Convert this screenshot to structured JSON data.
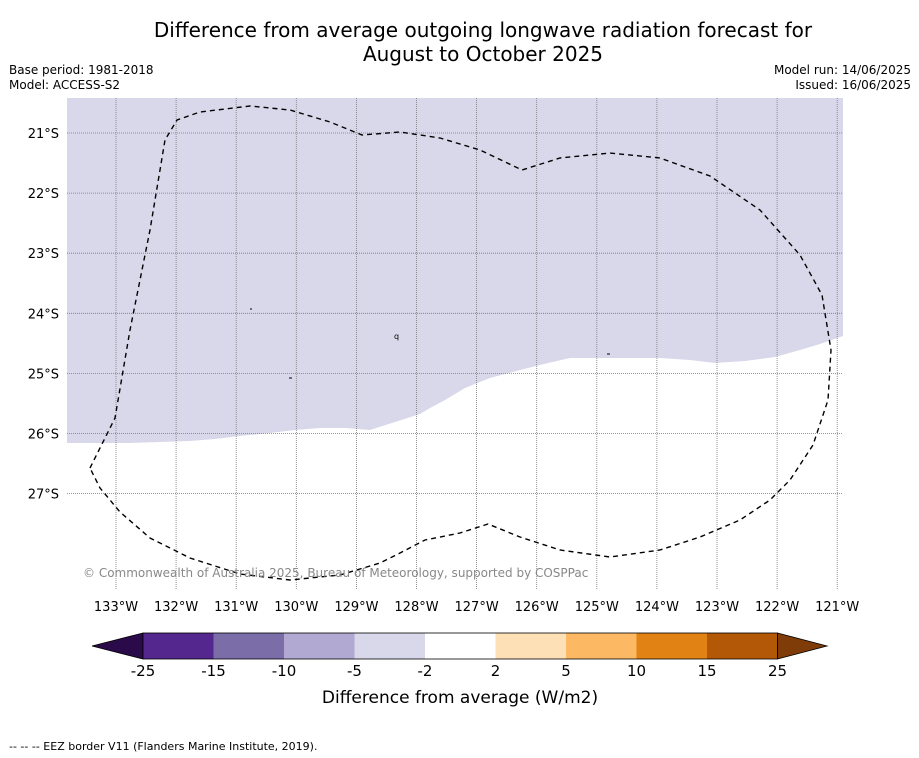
{
  "title": "Difference from average outgoing longwave radiation forecast for August to October 2025",
  "title_lines": [
    "Difference from average outgoing longwave radiation forecast for",
    "August to October 2025"
  ],
  "meta_left": [
    "Base period: 1981-2018",
    "Model: ACCESS-S2"
  ],
  "meta_right": [
    "Model run: 14/06/2025",
    "Issued: 16/06/2025"
  ],
  "lat_labels": [
    "21°S",
    "22°S",
    "23°S",
    "24°S",
    "25°S",
    "26°S",
    "27°S"
  ],
  "lon_labels": [
    "133°W",
    "132°W",
    "131°W",
    "130°W",
    "129°W",
    "128°W",
    "127°W",
    "126°W",
    "125°W",
    "124°W",
    "123°W",
    "122°W",
    "121°W"
  ],
  "copyright": "© Commonwealth of Australia 2025, Bureau of Meteorology, supported by COSPPac",
  "colorbar": {
    "ticks": [
      "-25",
      "-15",
      "-10",
      "-5",
      "-2",
      "2",
      "5",
      "10",
      "15",
      "25"
    ],
    "colors": [
      "#2b0a4a",
      "#54278f",
      "#7b6ea8",
      "#b1a9d1",
      "#d9d8ea",
      "#ffffff",
      "#fee0b6",
      "#fdb863",
      "#e08214",
      "#b35806",
      "#7f3b08"
    ],
    "label": "Difference from average (W/m2)"
  },
  "legend_note": "--  --  -- EEZ border V11 (Flanders Marine Institute, 2019).",
  "map_fill_colors": {
    "negative_anomaly": "#d9d8ea",
    "neutral": "#ffffff"
  }
}
